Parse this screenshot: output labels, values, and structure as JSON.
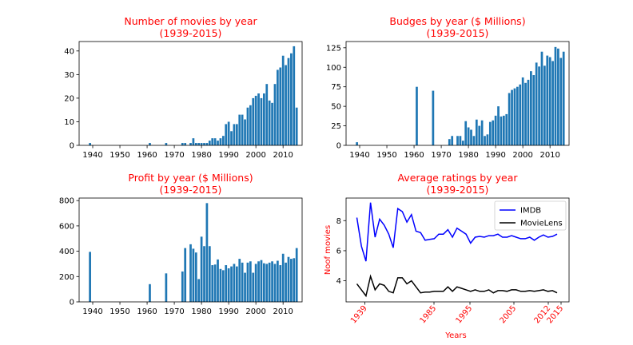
{
  "colors": {
    "bar": "#1f77b4",
    "title": "#ff0000",
    "imdb": "#0000ff",
    "movielens": "#000000"
  },
  "chart_data": [
    {
      "type": "bar",
      "title_line1": "Number of movies by year",
      "title_line2": "(1939-2015)",
      "x": [
        1939,
        1961,
        1967,
        1973,
        1974,
        1976,
        1977,
        1978,
        1979,
        1980,
        1981,
        1982,
        1983,
        1984,
        1985,
        1986,
        1987,
        1988,
        1989,
        1990,
        1991,
        1992,
        1993,
        1994,
        1995,
        1996,
        1997,
        1998,
        1999,
        2000,
        2001,
        2002,
        2003,
        2004,
        2005,
        2006,
        2007,
        2008,
        2009,
        2010,
        2011,
        2012,
        2013,
        2014,
        2015
      ],
      "values": [
        1,
        1,
        1,
        1,
        1,
        1,
        3,
        1,
        1,
        1,
        1,
        1,
        2,
        3,
        3,
        2,
        3,
        4,
        9,
        10,
        6,
        9,
        9,
        13,
        13,
        11,
        16,
        17,
        20,
        21,
        22,
        20,
        22,
        26,
        19,
        18,
        26,
        32,
        33,
        38,
        34,
        37,
        39,
        42,
        16
      ],
      "xticks": [
        "1940",
        "1950",
        "1960",
        "1970",
        "1980",
        "1990",
        "2000",
        "2010"
      ],
      "yticks": [
        "0",
        "10",
        "20",
        "30",
        "40"
      ],
      "xlim": [
        1935,
        2017
      ],
      "ylim": [
        0,
        44
      ]
    },
    {
      "type": "bar",
      "title_line1": "Budges by year ($ Millions)",
      "title_line2": "(1939-2015)",
      "x": [
        1939,
        1961,
        1967,
        1973,
        1974,
        1976,
        1977,
        1978,
        1979,
        1980,
        1981,
        1982,
        1983,
        1984,
        1985,
        1986,
        1987,
        1988,
        1989,
        1990,
        1991,
        1992,
        1993,
        1994,
        1995,
        1996,
        1997,
        1998,
        1999,
        2000,
        2001,
        2002,
        2003,
        2004,
        2005,
        2006,
        2007,
        2008,
        2009,
        2010,
        2011,
        2012,
        2013,
        2014,
        2015
      ],
      "values": [
        4,
        75,
        70,
        8,
        12,
        12,
        12,
        6,
        31,
        23,
        20,
        12,
        33,
        25,
        32,
        12,
        14,
        30,
        32,
        38,
        50,
        37,
        38,
        40,
        67,
        71,
        73,
        75,
        78,
        87,
        80,
        84,
        95,
        90,
        106,
        101,
        120,
        102,
        115,
        113,
        108,
        126,
        124,
        112,
        120
      ],
      "xticks": [
        "1940",
        "1950",
        "1960",
        "1970",
        "1980",
        "1990",
        "2000",
        "2010"
      ],
      "yticks": [
        "0",
        "25",
        "50",
        "75",
        "100",
        "125"
      ],
      "xlim": [
        1935,
        2017
      ],
      "ylim": [
        0,
        133
      ]
    },
    {
      "type": "bar",
      "title_line1": "Profit by year ($ Millions)",
      "title_line2": "(1939-2015)",
      "x": [
        1939,
        1961,
        1967,
        1973,
        1974,
        1976,
        1977,
        1978,
        1979,
        1980,
        1981,
        1982,
        1983,
        1984,
        1985,
        1986,
        1987,
        1988,
        1989,
        1990,
        1991,
        1992,
        1993,
        1994,
        1995,
        1996,
        1997,
        1998,
        1999,
        2000,
        2001,
        2002,
        2003,
        2004,
        2005,
        2006,
        2007,
        2008,
        2009,
        2010,
        2011,
        2012,
        2013,
        2014,
        2015
      ],
      "values": [
        395,
        140,
        225,
        240,
        425,
        455,
        420,
        390,
        180,
        515,
        440,
        780,
        440,
        290,
        295,
        335,
        260,
        250,
        290,
        265,
        280,
        300,
        280,
        340,
        310,
        230,
        310,
        320,
        230,
        300,
        320,
        330,
        305,
        300,
        310,
        320,
        300,
        325,
        290,
        380,
        310,
        355,
        340,
        345,
        425
      ],
      "xticks": [
        "1940",
        "1950",
        "1960",
        "1970",
        "1980",
        "1990",
        "2000",
        "2010"
      ],
      "yticks": [
        "0",
        "200",
        "400",
        "600",
        "800"
      ],
      "xlim": [
        1935,
        2017
      ],
      "ylim": [
        0,
        820
      ]
    },
    {
      "type": "line",
      "title_line1": "Average ratings by year",
      "title_line2": "(1939-2015)",
      "xlabel": "Years",
      "ylabel": "Noof movies",
      "xticks": [
        "1939",
        "1985",
        "1995",
        "2005",
        "2012",
        "2015"
      ],
      "yticks": [
        "4",
        "6",
        "8"
      ],
      "ylim": [
        2.6,
        9.5
      ],
      "legend": [
        "IMDB",
        "MovieLens"
      ],
      "legend_position": "upper right",
      "series": [
        {
          "name": "IMDB",
          "values": [
            8.2,
            6.3,
            5.3,
            9.2,
            6.9,
            8.1,
            7.7,
            7.1,
            6.2,
            8.8,
            8.6,
            7.9,
            8.4,
            7.3,
            7.2,
            6.7,
            6.75,
            6.8,
            7.1,
            7.1,
            7.4,
            6.9,
            7.5,
            7.3,
            7.1,
            6.5,
            6.9,
            6.95,
            6.9,
            7.0,
            7.0,
            7.1,
            6.9,
            6.9,
            7.0,
            6.9,
            6.8,
            6.8,
            6.9,
            6.7,
            6.9,
            7.05,
            6.9,
            6.95,
            7.1
          ]
        },
        {
          "name": "MovieLens",
          "values": [
            3.8,
            3.4,
            3.0,
            4.3,
            3.4,
            3.8,
            3.7,
            3.3,
            3.2,
            4.2,
            4.2,
            3.8,
            4.0,
            3.6,
            3.2,
            3.25,
            3.25,
            3.3,
            3.3,
            3.3,
            3.6,
            3.3,
            3.6,
            3.5,
            3.4,
            3.3,
            3.4,
            3.3,
            3.3,
            3.4,
            3.2,
            3.35,
            3.35,
            3.3,
            3.4,
            3.4,
            3.3,
            3.3,
            3.35,
            3.3,
            3.35,
            3.4,
            3.3,
            3.35,
            3.2
          ]
        }
      ]
    }
  ]
}
